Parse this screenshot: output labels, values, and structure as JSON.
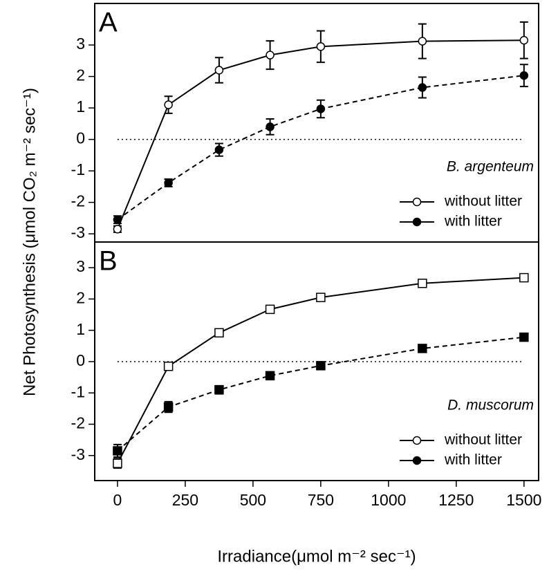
{
  "chart_data": [
    {
      "type": "line",
      "panel_label": "A",
      "species": "B. argenteum",
      "ylabel": "Net Photosynthesis (μmol CO₂ m⁻² sec⁻¹)",
      "x": [
        0,
        188,
        375,
        563,
        750,
        1125,
        1500
      ],
      "series": [
        {
          "name": "without litter",
          "color": "#000000",
          "marker": "open-circle",
          "linestyle": "solid",
          "values": [
            -2.85,
            1.1,
            2.2,
            2.68,
            2.95,
            3.12,
            3.15
          ],
          "errors": [
            0.1,
            0.27,
            0.4,
            0.45,
            0.5,
            0.55,
            0.58
          ]
        },
        {
          "name": "with litter",
          "color": "#000000",
          "marker": "filled-circle",
          "linestyle": "dashed",
          "values": [
            -2.55,
            -1.38,
            -0.33,
            0.4,
            0.97,
            1.65,
            2.03
          ],
          "errors": [
            0.12,
            0.12,
            0.2,
            0.25,
            0.28,
            0.33,
            0.35
          ]
        }
      ],
      "reference_line": 0,
      "xlim": [
        -84,
        1554
      ],
      "ylim": [
        -3.26,
        4.32
      ],
      "yticks": [
        -3,
        -2,
        -1,
        0,
        1,
        2,
        3
      ]
    },
    {
      "type": "line",
      "panel_label": "B",
      "species": "D. muscorum",
      "xlabel": "Irradiance(μmol m⁻² sec⁻¹)",
      "x": [
        0,
        188,
        375,
        563,
        750,
        1125,
        1500
      ],
      "series": [
        {
          "name": "without litter",
          "color": "#000000",
          "marker": "open-square",
          "linestyle": "solid",
          "values": [
            -3.25,
            -0.15,
            0.92,
            1.67,
            2.05,
            2.5,
            2.68
          ],
          "errors": [
            0.15,
            0.12,
            0.1,
            0.08,
            0.06,
            0.06,
            0.05
          ]
        },
        {
          "name": "with litter",
          "color": "#000000",
          "marker": "filled-square",
          "linestyle": "dashed",
          "values": [
            -2.85,
            -1.45,
            -0.9,
            -0.45,
            -0.13,
            0.42,
            0.78
          ],
          "errors": [
            0.2,
            0.17,
            0.13,
            0.1,
            0.08,
            0.08,
            0.06
          ]
        }
      ],
      "legend_marker": "circle",
      "reference_line": 0,
      "xlim": [
        -84,
        1554
      ],
      "ylim": [
        -3.8,
        3.82
      ],
      "yticks": [
        -3,
        -2,
        -1,
        0,
        1,
        2,
        3
      ],
      "xticks": [
        0,
        250,
        500,
        750,
        1000,
        1250,
        1500
      ]
    }
  ]
}
